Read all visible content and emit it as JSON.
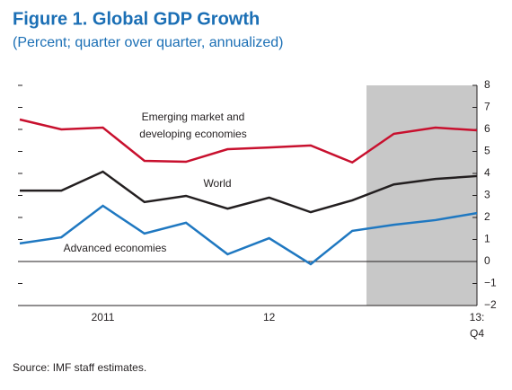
{
  "chart_data": {
    "type": "line",
    "title": "Figure 1. Global GDP Growth",
    "subtitle": "(Percent; quarter over quarter, annualized)",
    "source": "Source: IMF staff estimates.",
    "categories": [
      null,
      null,
      "2011",
      null,
      null,
      null,
      "12",
      null,
      null,
      null,
      null,
      "13:"
    ],
    "last_category_second_line": "Q4",
    "series": [
      {
        "name": "Emerging market and developing economies",
        "label_lines": [
          "Emerging market and",
          "developing economies"
        ],
        "color": "#c8102e",
        "values": [
          6.45,
          6.0,
          6.08,
          4.57,
          4.53,
          5.1,
          5.18,
          5.27,
          4.5,
          5.8,
          6.08,
          5.96
        ]
      },
      {
        "name": "World",
        "color": "#231f20",
        "values": [
          3.22,
          3.22,
          4.08,
          2.7,
          2.98,
          2.4,
          2.9,
          2.24,
          2.78,
          3.5,
          3.75,
          3.88
        ]
      },
      {
        "name": "Advanced economies",
        "color": "#1f78c1",
        "values": [
          0.82,
          1.1,
          2.53,
          1.27,
          1.76,
          0.33,
          1.06,
          -0.12,
          1.39,
          1.67,
          1.88,
          2.2
        ]
      }
    ],
    "ylim": [
      -2,
      8
    ],
    "yticks": [
      {
        "value": -2,
        "label": "−2"
      },
      {
        "value": -1,
        "label": "−1"
      },
      0,
      1,
      2,
      3,
      4,
      5,
      6,
      7,
      8
    ]
  }
}
